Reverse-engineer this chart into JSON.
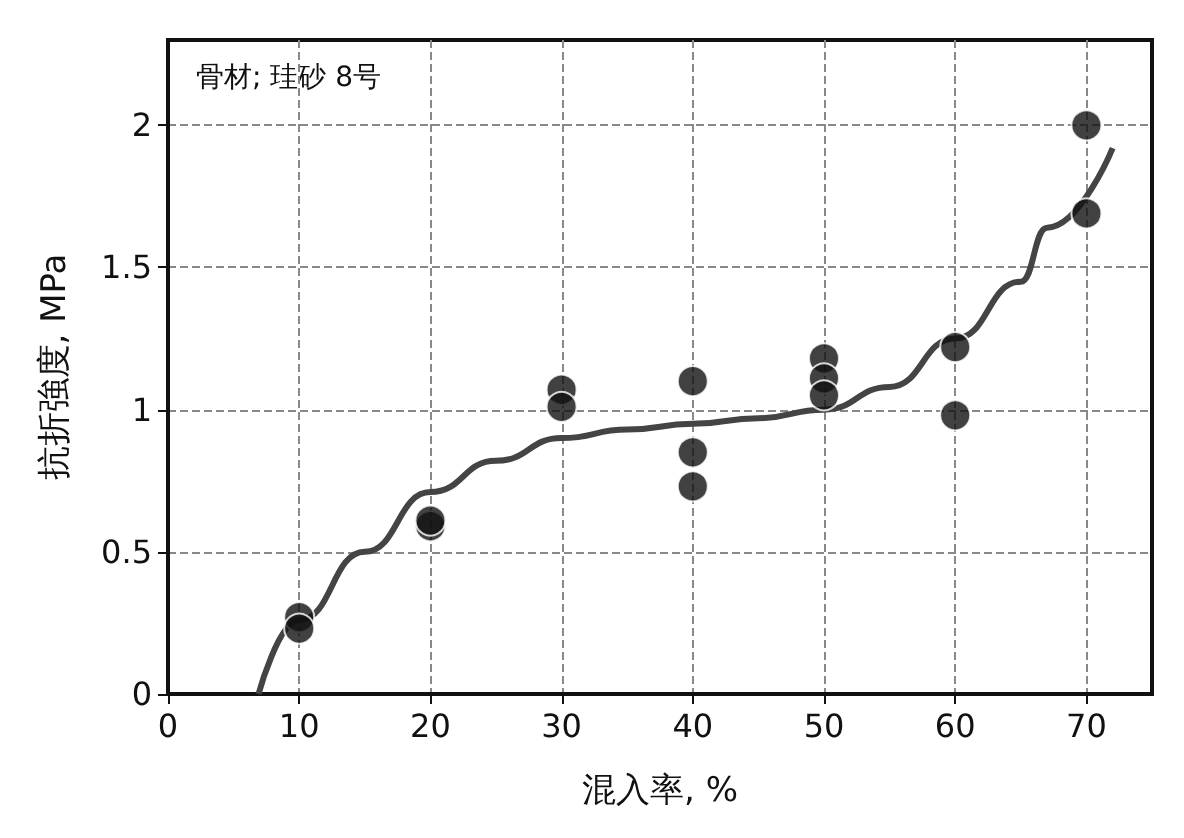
{
  "chart_data": {
    "type": "scatter",
    "xlabel": "混入率, %",
    "ylabel": "抗折強度, MPa",
    "annotations": [
      "骨材; 珪砂 8号"
    ],
    "xlim": [
      0,
      75
    ],
    "xticks": [
      0,
      10,
      20,
      30,
      40,
      50,
      60,
      70
    ],
    "ylim": [
      0,
      2.3
    ],
    "yticks": [
      0,
      0.5,
      1,
      1.5,
      2
    ],
    "grid": true,
    "marker": "circle",
    "series": [
      {
        "color": "#111111",
        "x": [
          10,
          10,
          20,
          20,
          30,
          30,
          40,
          40,
          40,
          50,
          50,
          50,
          60,
          60,
          70,
          70
        ],
        "values": [
          0.27,
          0.23,
          0.59,
          0.61,
          1.07,
          1.01,
          1.1,
          0.85,
          0.73,
          1.18,
          1.11,
          1.05,
          1.22,
          0.98,
          2.0,
          1.69
        ]
      },
      {
        "type": "line",
        "color": "#444444",
        "marker": "none",
        "x": [
          6.9,
          10,
          15,
          20,
          25,
          30,
          35,
          40,
          45,
          50,
          55,
          60,
          65,
          67,
          72
        ],
        "values": [
          0,
          0.26,
          0.5,
          0.71,
          0.82,
          0.9,
          0.93,
          0.95,
          0.97,
          1.0,
          1.08,
          1.25,
          1.45,
          1.64,
          1.92
        ]
      }
    ]
  }
}
